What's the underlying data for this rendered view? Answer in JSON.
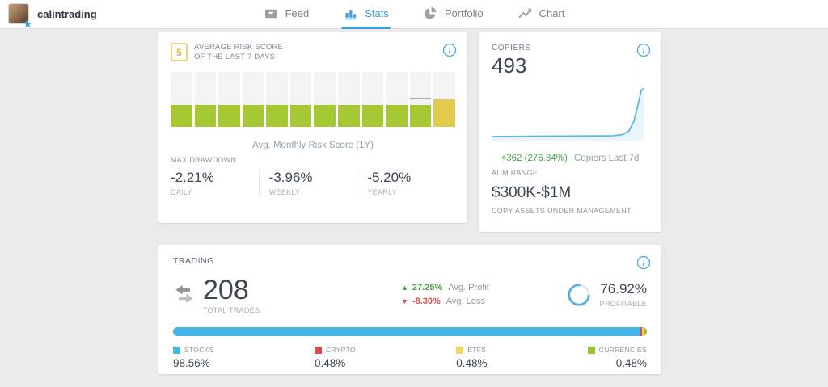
{
  "header": {
    "username": "calintrading",
    "tabs": [
      {
        "label": "Feed",
        "icon": "feed-icon",
        "active": false
      },
      {
        "label": "Stats",
        "icon": "stats-icon",
        "active": true
      },
      {
        "label": "Portfolio",
        "icon": "portfolio-icon",
        "active": false
      },
      {
        "label": "Chart",
        "icon": "chart-icon",
        "active": false
      }
    ],
    "active_color": "#3d9fd8"
  },
  "risk_card": {
    "score_badge": "5",
    "title": "AVERAGE RISK SCORE OF THE LAST 7 DAYS",
    "chart_caption": "Avg. Monthly Risk Score (1Y)",
    "max_drawdown_label": "MAX DRAWDOWN",
    "drawdown": [
      {
        "value": "-2.21%",
        "period": "DAILY"
      },
      {
        "value": "-3.96%",
        "period": "WEEKLY"
      },
      {
        "value": "-5.20%",
        "period": "YEARLY"
      }
    ]
  },
  "copiers_card": {
    "label": "COPIERS",
    "count": "493",
    "change_text": "+362 (276.34%)",
    "change_caption": "Copiers Last 7d",
    "aum_label": "AUM RANGE",
    "aum_value": "$300K-$1M",
    "aum_caption": "COPY ASSETS UNDER MANAGEMENT"
  },
  "trading_card": {
    "title": "TRADING",
    "total_trades": {
      "value": "208",
      "label": "TOTAL TRADES"
    },
    "avg_profit": {
      "arrow": "▲",
      "value": "27.25%",
      "label": "Avg. Profit"
    },
    "avg_loss": {
      "arrow": "▼",
      "value": "-8.30%",
      "label": "Avg. Loss"
    },
    "profitable": {
      "value": "76.92%",
      "pct": 76.92,
      "label": "PROFITABLE",
      "ring_color": "#55b0e4"
    },
    "allocation": [
      {
        "name": "STOCKS",
        "value": "98.56%",
        "pct": 98.56,
        "color": "#45b5e8"
      },
      {
        "name": "CRYPTO",
        "value": "0.48%",
        "pct": 0.48,
        "color": "#e2444d"
      },
      {
        "name": "ETFS",
        "value": "0.48%",
        "pct": 0.48,
        "color": "#f2d368"
      },
      {
        "name": "CURRENCIES",
        "value": "0.48%",
        "pct": 0.48,
        "color": "#96c22e"
      }
    ]
  },
  "chart_data": [
    {
      "type": "bar",
      "title": "Avg. Monthly Risk Score (1Y)",
      "num_bars": 12,
      "values": [
        4,
        4,
        4,
        4,
        4,
        4,
        4,
        4,
        4,
        4,
        4,
        5
      ],
      "ylim": [
        0,
        10
      ],
      "bar_colors": [
        "#a6c832",
        "#a6c832",
        "#a6c832",
        "#a6c832",
        "#a6c832",
        "#a6c832",
        "#a6c832",
        "#a6c832",
        "#a6c832",
        "#a6c832",
        "#a6c832",
        "#e3cb4e"
      ],
      "column_bg": "#f3f3f3",
      "marker": {
        "index": 10,
        "value": 5,
        "color": "#a9a9a9"
      },
      "xlabel": "",
      "ylabel": "",
      "tick_labels_shown": false
    },
    {
      "type": "line",
      "title": "Copiers Last 7d",
      "series": [
        {
          "name": "Copiers",
          "values": [
            131,
            131,
            131,
            131,
            132,
            140,
            250,
            493
          ]
        }
      ],
      "start_value": 131,
      "end_value": 493,
      "change_abs": 362,
      "change_pct": 276.34,
      "line_color": "#5bb7e6",
      "fill_color": "#e9f4fb",
      "tick_labels_shown": false
    },
    {
      "type": "bar",
      "subtype": "stacked-horizontal",
      "title": "Trade allocation by asset class",
      "categories": [
        "STOCKS",
        "CRYPTO",
        "ETFS",
        "CURRENCIES"
      ],
      "values": [
        98.56,
        0.48,
        0.48,
        0.48
      ],
      "colors": [
        "#45b5e8",
        "#e2444d",
        "#f2d368",
        "#96c22e"
      ]
    },
    {
      "type": "pie",
      "subtype": "donut",
      "title": "Profitable trades",
      "categories": [
        "Profitable",
        "Not profitable"
      ],
      "values": [
        76.92,
        23.08
      ],
      "colors": [
        "#55b0e4",
        "#e4e8ea"
      ]
    }
  ]
}
